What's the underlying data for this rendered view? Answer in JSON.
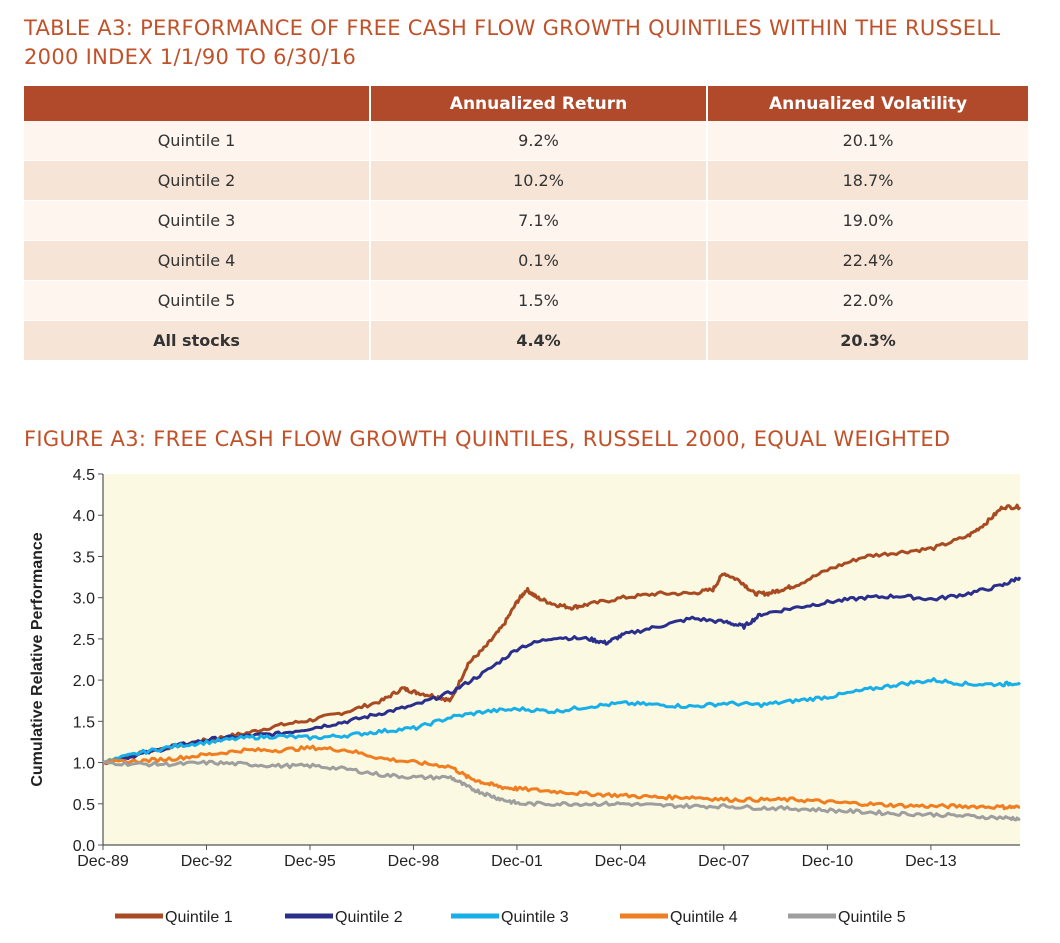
{
  "table": {
    "title": "TABLE A3: PERFORMANCE OF FREE CASH FLOW GROWTH QUINTILES WITHIN THE RUSSELL 2000 INDEX 1/1/90 TO 6/30/16",
    "headers": [
      "",
      "Annualized Return",
      "Annualized Volatility"
    ],
    "rows": [
      {
        "label": "Quintile 1",
        "return": "9.2%",
        "volatility": "20.1%"
      },
      {
        "label": "Quintile 2",
        "return": "10.2%",
        "volatility": "18.7%"
      },
      {
        "label": "Quintile 3",
        "return": "7.1%",
        "volatility": "19.0%"
      },
      {
        "label": "Quintile 4",
        "return": "0.1%",
        "volatility": "22.4%"
      },
      {
        "label": "Quintile 5",
        "return": "1.5%",
        "volatility": "22.0%"
      },
      {
        "label": "All stocks",
        "return": "4.4%",
        "volatility": "20.3%"
      }
    ]
  },
  "chart_data": {
    "type": "line",
    "title": "FIGURE A3: FREE CASH FLOW GROWTH QUINTILES, RUSSELL 2000, EQUAL WEIGHTED",
    "xlabel": "",
    "ylabel": "Cumulative Relative Performance",
    "ylim": [
      0,
      4.5
    ],
    "xlim": [
      1989.917,
      2016.5
    ],
    "yticks": [
      "0.0",
      "0.5",
      "1.0",
      "1.5",
      "2.0",
      "2.5",
      "3.0",
      "3.5",
      "4.0",
      "4.5"
    ],
    "xticks": [
      {
        "label": "Dec-89",
        "x": 1989.917
      },
      {
        "label": "Dec-92",
        "x": 1992.917
      },
      {
        "label": "Dec-95",
        "x": 1995.917
      },
      {
        "label": "Dec-98",
        "x": 1998.917
      },
      {
        "label": "Dec-01",
        "x": 2001.917
      },
      {
        "label": "Dec-04",
        "x": 2004.917
      },
      {
        "label": "Dec-07",
        "x": 2007.917
      },
      {
        "label": "Dec-10",
        "x": 2010.917
      },
      {
        "label": "Dec-13",
        "x": 2013.917
      }
    ],
    "grid": false,
    "background": "#fbf9e1",
    "series": [
      {
        "name": "Quintile 1",
        "color": "#a84a22",
        "x": [
          1989.92,
          1991,
          1992,
          1993,
          1994,
          1995,
          1996,
          1997,
          1998,
          1998.6,
          1999,
          1999.6,
          2000,
          2000.5,
          2001,
          2001.5,
          2001.92,
          2002.2,
          2002.5,
          2003,
          2003.5,
          2004,
          2005,
          2006,
          2007,
          2007.6,
          2007.9,
          2008.4,
          2008.8,
          2009.2,
          2009.6,
          2010,
          2011,
          2012,
          2013,
          2014,
          2015,
          2015.5,
          2016,
          2016.5
        ],
        "y": [
          1.0,
          1.12,
          1.2,
          1.28,
          1.35,
          1.45,
          1.52,
          1.62,
          1.75,
          1.9,
          1.85,
          1.8,
          1.75,
          2.2,
          2.4,
          2.65,
          2.95,
          3.1,
          3.0,
          2.92,
          2.88,
          2.92,
          3.0,
          3.05,
          3.05,
          3.1,
          3.3,
          3.2,
          3.05,
          3.05,
          3.1,
          3.15,
          3.35,
          3.5,
          3.55,
          3.6,
          3.75,
          3.9,
          4.1,
          4.1
        ]
      },
      {
        "name": "Quintile 2",
        "color": "#2b2f8c",
        "x": [
          1989.92,
          1991,
          1992,
          1993,
          1994,
          1995,
          1996,
          1997,
          1998,
          1999,
          2000,
          2001,
          2002,
          2003,
          2004,
          2004.5,
          2005,
          2006,
          2007,
          2008,
          2008.5,
          2009,
          2010,
          2011,
          2012,
          2013,
          2014,
          2015,
          2016,
          2016.5
        ],
        "y": [
          1.0,
          1.1,
          1.2,
          1.28,
          1.32,
          1.35,
          1.42,
          1.5,
          1.6,
          1.7,
          1.85,
          2.1,
          2.4,
          2.52,
          2.5,
          2.45,
          2.55,
          2.65,
          2.75,
          2.7,
          2.65,
          2.8,
          2.88,
          2.95,
          3.0,
          3.02,
          2.98,
          3.05,
          3.15,
          3.25
        ]
      },
      {
        "name": "Quintile 3",
        "color": "#18aee8",
        "x": [
          1989.92,
          1991,
          1992,
          1993,
          1994,
          1995,
          1996,
          1997,
          1998,
          1999,
          2000,
          2001,
          2002,
          2003,
          2004,
          2005,
          2006,
          2007,
          2008,
          2009,
          2010,
          2011,
          2012,
          2013,
          2014,
          2015,
          2016,
          2016.5
        ],
        "y": [
          1.0,
          1.12,
          1.2,
          1.25,
          1.3,
          1.32,
          1.3,
          1.33,
          1.38,
          1.42,
          1.55,
          1.62,
          1.65,
          1.62,
          1.68,
          1.72,
          1.7,
          1.68,
          1.72,
          1.7,
          1.75,
          1.8,
          1.88,
          1.95,
          2.0,
          1.95,
          1.95,
          1.97
        ]
      },
      {
        "name": "Quintile 4",
        "color": "#ef7e22",
        "x": [
          1989.92,
          1991,
          1992,
          1993,
          1994,
          1995,
          1996,
          1997,
          1998,
          1999,
          2000,
          2000.5,
          2001,
          2001.5,
          2002,
          2003,
          2004,
          2005,
          2006,
          2007,
          2008,
          2009,
          2010,
          2011,
          2012,
          2013,
          2014,
          2015,
          2016,
          2016.5
        ],
        "y": [
          1.0,
          1.02,
          1.05,
          1.1,
          1.15,
          1.15,
          1.18,
          1.15,
          1.05,
          1.0,
          0.95,
          0.82,
          0.75,
          0.7,
          0.68,
          0.65,
          0.62,
          0.6,
          0.58,
          0.58,
          0.55,
          0.55,
          0.55,
          0.52,
          0.5,
          0.48,
          0.47,
          0.47,
          0.46,
          0.46
        ]
      },
      {
        "name": "Quintile 5",
        "color": "#9e9e9e",
        "x": [
          1989.92,
          1991,
          1992,
          1993,
          1994,
          1995,
          1996,
          1997,
          1998,
          1999,
          2000,
          2000.5,
          2001,
          2001.5,
          2002,
          2003,
          2004,
          2005,
          2006,
          2007,
          2008,
          2009,
          2010,
          2011,
          2012,
          2013,
          2014,
          2015,
          2016,
          2016.5
        ],
        "y": [
          1.0,
          0.98,
          0.98,
          1.0,
          0.98,
          0.96,
          0.96,
          0.92,
          0.85,
          0.82,
          0.82,
          0.7,
          0.62,
          0.55,
          0.5,
          0.5,
          0.5,
          0.5,
          0.48,
          0.47,
          0.47,
          0.45,
          0.44,
          0.42,
          0.4,
          0.38,
          0.37,
          0.35,
          0.33,
          0.32
        ]
      }
    ]
  }
}
